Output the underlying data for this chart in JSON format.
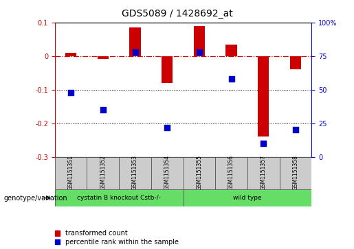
{
  "title": "GDS5089 / 1428692_at",
  "samples": [
    "GSM1151351",
    "GSM1151352",
    "GSM1151353",
    "GSM1151354",
    "GSM1151355",
    "GSM1151356",
    "GSM1151357",
    "GSM1151358"
  ],
  "red_values": [
    0.01,
    -0.008,
    0.085,
    -0.08,
    0.09,
    0.035,
    -0.24,
    -0.04
  ],
  "blue_percentiles": [
    48,
    35,
    78,
    22,
    78,
    58,
    10,
    20
  ],
  "group1_label": "cystatin B knockout Cstb-/-",
  "group2_label": "wild type",
  "group_row_label": "genotype/variation",
  "legend_red": "transformed count",
  "legend_blue": "percentile rank within the sample",
  "ylim_left": [
    -0.3,
    0.1
  ],
  "ylim_right": [
    0,
    100
  ],
  "yticks_left": [
    -0.3,
    -0.2,
    -0.1,
    0.0,
    0.1
  ],
  "yticks_right": [
    0,
    25,
    50,
    75,
    100
  ],
  "hline_y": 0.0,
  "dotted_lines": [
    -0.1,
    -0.2
  ],
  "bar_color": "#cc0000",
  "dot_color": "#0000cc",
  "group1_color": "#66dd66",
  "group2_color": "#66dd66",
  "sample_box_color": "#cccccc",
  "bar_width": 0.35,
  "dot_size": 28
}
